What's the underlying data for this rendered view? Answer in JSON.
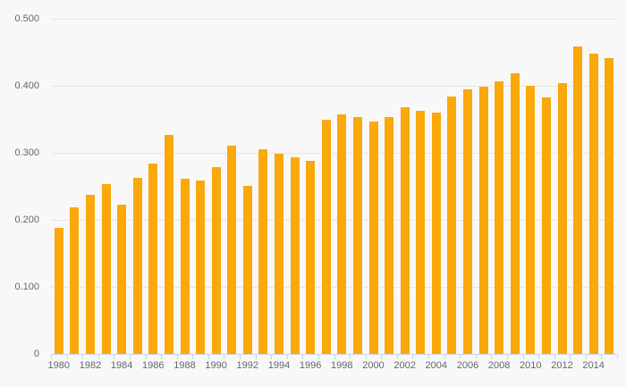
{
  "chart_data": {
    "type": "bar",
    "title": "",
    "xlabel": "",
    "ylabel": "",
    "categories": [
      "1980",
      "1981",
      "1982",
      "1983",
      "1984",
      "1985",
      "1986",
      "1987",
      "1988",
      "1989",
      "1990",
      "1991",
      "1992",
      "1993",
      "1994",
      "1995",
      "1996",
      "1997",
      "1998",
      "1999",
      "2000",
      "2001",
      "2002",
      "2003",
      "2004",
      "2005",
      "2006",
      "2007",
      "2008",
      "2009",
      "2010",
      "2011",
      "2012",
      "2013",
      "2014",
      "2015"
    ],
    "values": [
      0.188,
      0.219,
      0.237,
      0.253,
      0.222,
      0.263,
      0.284,
      0.326,
      0.261,
      0.258,
      0.278,
      0.31,
      0.25,
      0.305,
      0.298,
      0.293,
      0.288,
      0.349,
      0.357,
      0.353,
      0.347,
      0.353,
      0.368,
      0.363,
      0.36,
      0.384,
      0.394,
      0.399,
      0.407,
      0.419,
      0.4,
      0.383,
      0.404,
      0.459,
      0.448,
      0.441
    ],
    "ylim": [
      0,
      0.5
    ],
    "y_ticks": [
      0,
      0.1,
      0.2,
      0.3,
      0.4,
      0.5
    ],
    "y_tick_labels": [
      "0",
      "0.100",
      "0.200",
      "0.300",
      "0.400",
      "0.500"
    ],
    "x_axis_labels": [
      "1980",
      "1982",
      "1984",
      "1986",
      "1988",
      "1990",
      "1992",
      "1994",
      "1996",
      "1998",
      "2000",
      "2002",
      "2004",
      "2006",
      "2008",
      "2010",
      "2012",
      "2014"
    ],
    "grid": "horizontal",
    "legend": "none",
    "colors": {
      "bar": "#faa80a",
      "background": "#f8f8f8",
      "gridline": "#e6e6e6",
      "axis_line": "#ccd6eb",
      "tick": "#ccd6eb",
      "label": "#666666"
    }
  }
}
